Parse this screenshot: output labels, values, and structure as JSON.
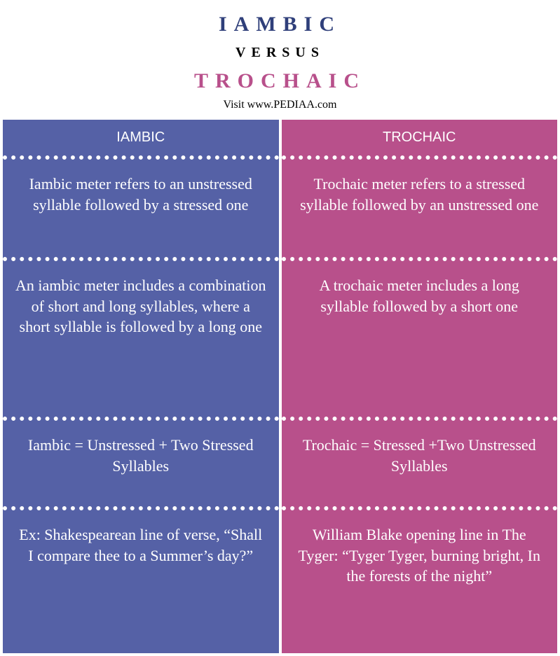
{
  "header": {
    "title1": "IAMBIC",
    "versus": "VERSUS",
    "title2": "TROCHAIC",
    "visit": "Visit www.PEDIAA.com"
  },
  "colors": {
    "left_bg": "#5561a6",
    "right_bg": "#b8508b",
    "title1_color": "#2f3f7a",
    "title2_color": "#b8508b"
  },
  "left": {
    "header": "IAMBIC",
    "cells": [
      "Iambic meter refers to an unstressed syllable followed by a stressed one",
      "An iambic meter includes a combination of short and long syllables, where a short syllable is followed by a long one",
      "Iambic = Unstressed + Two Stressed Syllables",
      "Ex: Shakespearean line of verse, “Shall I compare thee to a Summer’s day?”"
    ]
  },
  "right": {
    "header": "TROCHAIC",
    "cells": [
      "Trochaic meter refers to a stressed syllable followed by an unstressed one",
      "A trochaic meter includes a long syllable followed by a short one",
      "Trochaic = Stressed +Two Unstressed Syllables",
      "William Blake opening line in The Tyger: “Tyger Tyger, burning bright, In the forests of the night”"
    ]
  }
}
